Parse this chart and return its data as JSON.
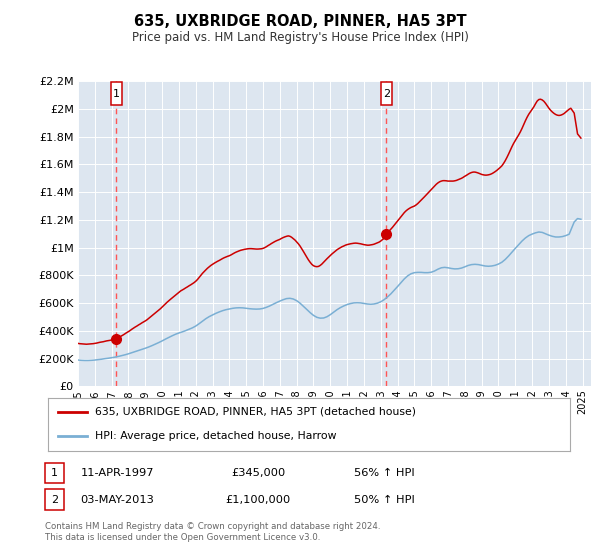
{
  "title": "635, UXBRIDGE ROAD, PINNER, HA5 3PT",
  "subtitle": "Price paid vs. HM Land Registry's House Price Index (HPI)",
  "ylim": [
    0,
    2200000
  ],
  "xlim_start": 1995.0,
  "xlim_end": 2025.5,
  "yticks": [
    0,
    200000,
    400000,
    600000,
    800000,
    1000000,
    1200000,
    1400000,
    1600000,
    1800000,
    2000000,
    2200000
  ],
  "ytick_labels": [
    "£0",
    "£200K",
    "£400K",
    "£600K",
    "£800K",
    "£1M",
    "£1.2M",
    "£1.4M",
    "£1.6M",
    "£1.8M",
    "£2M",
    "£2.2M"
  ],
  "xticks": [
    1995,
    1996,
    1997,
    1998,
    1999,
    2000,
    2001,
    2002,
    2003,
    2004,
    2005,
    2006,
    2007,
    2008,
    2009,
    2010,
    2011,
    2012,
    2013,
    2014,
    2015,
    2016,
    2017,
    2018,
    2019,
    2020,
    2021,
    2022,
    2023,
    2024,
    2025
  ],
  "bg_color": "#dde6f0",
  "grid_color": "#ffffff",
  "red_line_color": "#cc0000",
  "blue_line_color": "#7aafd4",
  "dashed_line_color": "#ff5555",
  "marker1_x": 1997.278,
  "marker1_y": 345000,
  "marker2_x": 2013.336,
  "marker2_y": 1100000,
  "marker_color": "#cc0000",
  "marker_size": 7,
  "legend_label_red": "635, UXBRIDGE ROAD, PINNER, HA5 3PT (detached house)",
  "legend_label_blue": "HPI: Average price, detached house, Harrow",
  "footnote1": "Contains HM Land Registry data © Crown copyright and database right 2024.",
  "footnote2": "This data is licensed under the Open Government Licence v3.0.",
  "table_row1_date": "11-APR-1997",
  "table_row1_price": "£345,000",
  "table_row1_hpi": "56% ↑ HPI",
  "table_row2_date": "03-MAY-2013",
  "table_row2_price": "£1,100,000",
  "table_row2_hpi": "50% ↑ HPI",
  "hpi_red": [
    [
      1995.0,
      310000
    ],
    [
      1995.1,
      308000
    ],
    [
      1995.2,
      307000
    ],
    [
      1995.3,
      306000
    ],
    [
      1995.4,
      305000
    ],
    [
      1995.5,
      304000
    ],
    [
      1995.6,
      305000
    ],
    [
      1995.7,
      306000
    ],
    [
      1995.8,
      307000
    ],
    [
      1995.9,
      308000
    ],
    [
      1996.0,
      310000
    ],
    [
      1996.1,
      312000
    ],
    [
      1996.2,
      315000
    ],
    [
      1996.3,
      318000
    ],
    [
      1996.4,
      320000
    ],
    [
      1996.5,
      322000
    ],
    [
      1996.6,
      325000
    ],
    [
      1996.7,
      328000
    ],
    [
      1996.8,
      330000
    ],
    [
      1996.9,
      332000
    ],
    [
      1997.0,
      335000
    ],
    [
      1997.1,
      338000
    ],
    [
      1997.2,
      340000
    ],
    [
      1997.278,
      345000
    ],
    [
      1997.4,
      352000
    ],
    [
      1997.5,
      358000
    ],
    [
      1997.6,
      365000
    ],
    [
      1997.7,
      372000
    ],
    [
      1997.8,
      380000
    ],
    [
      1997.9,
      388000
    ],
    [
      1998.0,
      395000
    ],
    [
      1998.1,
      403000
    ],
    [
      1998.2,
      412000
    ],
    [
      1998.3,
      420000
    ],
    [
      1998.4,
      428000
    ],
    [
      1998.5,
      435000
    ],
    [
      1998.6,
      443000
    ],
    [
      1998.7,
      450000
    ],
    [
      1998.8,
      458000
    ],
    [
      1998.9,
      465000
    ],
    [
      1999.0,
      472000
    ],
    [
      1999.1,
      480000
    ],
    [
      1999.2,
      490000
    ],
    [
      1999.3,
      500000
    ],
    [
      1999.4,
      510000
    ],
    [
      1999.5,
      520000
    ],
    [
      1999.6,
      530000
    ],
    [
      1999.7,
      540000
    ],
    [
      1999.8,
      550000
    ],
    [
      1999.9,
      560000
    ],
    [
      2000.0,
      572000
    ],
    [
      2000.1,
      583000
    ],
    [
      2000.2,
      595000
    ],
    [
      2000.3,
      607000
    ],
    [
      2000.4,
      618000
    ],
    [
      2000.5,
      628000
    ],
    [
      2000.6,
      638000
    ],
    [
      2000.7,
      648000
    ],
    [
      2000.8,
      658000
    ],
    [
      2000.9,
      668000
    ],
    [
      2001.0,
      678000
    ],
    [
      2001.1,
      688000
    ],
    [
      2001.2,
      695000
    ],
    [
      2001.3,
      702000
    ],
    [
      2001.4,
      710000
    ],
    [
      2001.5,
      717000
    ],
    [
      2001.6,
      725000
    ],
    [
      2001.7,
      732000
    ],
    [
      2001.8,
      740000
    ],
    [
      2001.9,
      748000
    ],
    [
      2002.0,
      758000
    ],
    [
      2002.1,
      770000
    ],
    [
      2002.2,
      785000
    ],
    [
      2002.3,
      800000
    ],
    [
      2002.4,
      815000
    ],
    [
      2002.5,
      828000
    ],
    [
      2002.6,
      840000
    ],
    [
      2002.7,
      852000
    ],
    [
      2002.8,
      862000
    ],
    [
      2002.9,
      872000
    ],
    [
      2003.0,
      880000
    ],
    [
      2003.1,
      888000
    ],
    [
      2003.2,
      895000
    ],
    [
      2003.3,
      902000
    ],
    [
      2003.4,
      908000
    ],
    [
      2003.5,
      915000
    ],
    [
      2003.6,
      922000
    ],
    [
      2003.7,
      928000
    ],
    [
      2003.8,
      933000
    ],
    [
      2003.9,
      938000
    ],
    [
      2004.0,
      942000
    ],
    [
      2004.1,
      948000
    ],
    [
      2004.2,
      955000
    ],
    [
      2004.3,
      962000
    ],
    [
      2004.4,
      968000
    ],
    [
      2004.5,
      973000
    ],
    [
      2004.6,
      978000
    ],
    [
      2004.7,
      982000
    ],
    [
      2004.8,
      985000
    ],
    [
      2004.9,
      988000
    ],
    [
      2005.0,
      990000
    ],
    [
      2005.1,
      992000
    ],
    [
      2005.2,
      993000
    ],
    [
      2005.3,
      993000
    ],
    [
      2005.4,
      992000
    ],
    [
      2005.5,
      991000
    ],
    [
      2005.6,
      990000
    ],
    [
      2005.7,
      990000
    ],
    [
      2005.8,
      991000
    ],
    [
      2005.9,
      992000
    ],
    [
      2006.0,
      995000
    ],
    [
      2006.1,
      1000000
    ],
    [
      2006.2,
      1007000
    ],
    [
      2006.3,
      1015000
    ],
    [
      2006.4,
      1022000
    ],
    [
      2006.5,
      1030000
    ],
    [
      2006.6,
      1037000
    ],
    [
      2006.7,
      1044000
    ],
    [
      2006.8,
      1050000
    ],
    [
      2006.9,
      1055000
    ],
    [
      2007.0,
      1060000
    ],
    [
      2007.1,
      1067000
    ],
    [
      2007.2,
      1073000
    ],
    [
      2007.3,
      1078000
    ],
    [
      2007.4,
      1082000
    ],
    [
      2007.5,
      1085000
    ],
    [
      2007.6,
      1082000
    ],
    [
      2007.7,
      1075000
    ],
    [
      2007.8,
      1065000
    ],
    [
      2007.9,
      1055000
    ],
    [
      2008.0,
      1042000
    ],
    [
      2008.1,
      1028000
    ],
    [
      2008.2,
      1012000
    ],
    [
      2008.3,
      993000
    ],
    [
      2008.4,
      973000
    ],
    [
      2008.5,
      952000
    ],
    [
      2008.6,
      932000
    ],
    [
      2008.7,
      912000
    ],
    [
      2008.8,
      895000
    ],
    [
      2008.9,
      880000
    ],
    [
      2009.0,
      870000
    ],
    [
      2009.1,
      865000
    ],
    [
      2009.2,
      863000
    ],
    [
      2009.3,
      865000
    ],
    [
      2009.4,
      872000
    ],
    [
      2009.5,
      882000
    ],
    [
      2009.6,
      895000
    ],
    [
      2009.7,
      908000
    ],
    [
      2009.8,
      920000
    ],
    [
      2009.9,
      932000
    ],
    [
      2010.0,
      943000
    ],
    [
      2010.1,
      955000
    ],
    [
      2010.2,
      965000
    ],
    [
      2010.3,
      975000
    ],
    [
      2010.4,
      985000
    ],
    [
      2010.5,
      993000
    ],
    [
      2010.6,
      1000000
    ],
    [
      2010.7,
      1007000
    ],
    [
      2010.8,
      1012000
    ],
    [
      2010.9,
      1018000
    ],
    [
      2011.0,
      1022000
    ],
    [
      2011.1,
      1025000
    ],
    [
      2011.2,
      1028000
    ],
    [
      2011.3,
      1030000
    ],
    [
      2011.4,
      1032000
    ],
    [
      2011.5,
      1033000
    ],
    [
      2011.6,
      1032000
    ],
    [
      2011.7,
      1030000
    ],
    [
      2011.8,
      1028000
    ],
    [
      2011.9,
      1025000
    ],
    [
      2012.0,
      1022000
    ],
    [
      2012.1,
      1020000
    ],
    [
      2012.2,
      1018000
    ],
    [
      2012.3,
      1018000
    ],
    [
      2012.4,
      1020000
    ],
    [
      2012.5,
      1022000
    ],
    [
      2012.6,
      1025000
    ],
    [
      2012.7,
      1030000
    ],
    [
      2012.8,
      1035000
    ],
    [
      2012.9,
      1040000
    ],
    [
      2013.0,
      1048000
    ],
    [
      2013.1,
      1058000
    ],
    [
      2013.2,
      1068000
    ],
    [
      2013.336,
      1100000
    ],
    [
      2013.4,
      1110000
    ],
    [
      2013.5,
      1120000
    ],
    [
      2013.6,
      1133000
    ],
    [
      2013.7,
      1147000
    ],
    [
      2013.8,
      1162000
    ],
    [
      2013.9,
      1177000
    ],
    [
      2014.0,
      1192000
    ],
    [
      2014.1,
      1208000
    ],
    [
      2014.2,
      1223000
    ],
    [
      2014.3,
      1238000
    ],
    [
      2014.4,
      1253000
    ],
    [
      2014.5,
      1265000
    ],
    [
      2014.6,
      1275000
    ],
    [
      2014.7,
      1283000
    ],
    [
      2014.8,
      1290000
    ],
    [
      2014.9,
      1295000
    ],
    [
      2015.0,
      1300000
    ],
    [
      2015.1,
      1308000
    ],
    [
      2015.2,
      1318000
    ],
    [
      2015.3,
      1330000
    ],
    [
      2015.4,
      1342000
    ],
    [
      2015.5,
      1355000
    ],
    [
      2015.6,
      1367000
    ],
    [
      2015.7,
      1380000
    ],
    [
      2015.8,
      1393000
    ],
    [
      2015.9,
      1405000
    ],
    [
      2016.0,
      1418000
    ],
    [
      2016.1,
      1432000
    ],
    [
      2016.2,
      1445000
    ],
    [
      2016.3,
      1457000
    ],
    [
      2016.4,
      1467000
    ],
    [
      2016.5,
      1475000
    ],
    [
      2016.6,
      1480000
    ],
    [
      2016.7,
      1483000
    ],
    [
      2016.8,
      1483000
    ],
    [
      2016.9,
      1482000
    ],
    [
      2017.0,
      1480000
    ],
    [
      2017.1,
      1480000
    ],
    [
      2017.2,
      1480000
    ],
    [
      2017.3,
      1480000
    ],
    [
      2017.4,
      1482000
    ],
    [
      2017.5,
      1485000
    ],
    [
      2017.6,
      1490000
    ],
    [
      2017.7,
      1495000
    ],
    [
      2017.8,
      1500000
    ],
    [
      2017.9,
      1507000
    ],
    [
      2018.0,
      1515000
    ],
    [
      2018.1,
      1522000
    ],
    [
      2018.2,
      1530000
    ],
    [
      2018.3,
      1537000
    ],
    [
      2018.4,
      1542000
    ],
    [
      2018.5,
      1545000
    ],
    [
      2018.6,
      1545000
    ],
    [
      2018.7,
      1542000
    ],
    [
      2018.8,
      1538000
    ],
    [
      2018.9,
      1533000
    ],
    [
      2019.0,
      1528000
    ],
    [
      2019.1,
      1525000
    ],
    [
      2019.2,
      1523000
    ],
    [
      2019.3,
      1523000
    ],
    [
      2019.4,
      1525000
    ],
    [
      2019.5,
      1528000
    ],
    [
      2019.6,
      1533000
    ],
    [
      2019.7,
      1540000
    ],
    [
      2019.8,
      1548000
    ],
    [
      2019.9,
      1557000
    ],
    [
      2020.0,
      1567000
    ],
    [
      2020.1,
      1578000
    ],
    [
      2020.2,
      1590000
    ],
    [
      2020.3,
      1607000
    ],
    [
      2020.4,
      1627000
    ],
    [
      2020.5,
      1650000
    ],
    [
      2020.6,
      1675000
    ],
    [
      2020.7,
      1702000
    ],
    [
      2020.8,
      1728000
    ],
    [
      2020.9,
      1752000
    ],
    [
      2021.0,
      1773000
    ],
    [
      2021.1,
      1793000
    ],
    [
      2021.2,
      1813000
    ],
    [
      2021.3,
      1835000
    ],
    [
      2021.4,
      1860000
    ],
    [
      2021.5,
      1888000
    ],
    [
      2021.6,
      1915000
    ],
    [
      2021.7,
      1940000
    ],
    [
      2021.8,
      1962000
    ],
    [
      2021.9,
      1980000
    ],
    [
      2022.0,
      1997000
    ],
    [
      2022.1,
      2015000
    ],
    [
      2022.2,
      2037000
    ],
    [
      2022.3,
      2057000
    ],
    [
      2022.4,
      2068000
    ],
    [
      2022.5,
      2070000
    ],
    [
      2022.6,
      2065000
    ],
    [
      2022.7,
      2055000
    ],
    [
      2022.8,
      2040000
    ],
    [
      2022.9,
      2022000
    ],
    [
      2023.0,
      2005000
    ],
    [
      2023.1,
      1990000
    ],
    [
      2023.2,
      1978000
    ],
    [
      2023.3,
      1968000
    ],
    [
      2023.4,
      1960000
    ],
    [
      2023.5,
      1955000
    ],
    [
      2023.6,
      1953000
    ],
    [
      2023.7,
      1955000
    ],
    [
      2023.8,
      1960000
    ],
    [
      2023.9,
      1967000
    ],
    [
      2024.0,
      1977000
    ],
    [
      2024.1,
      1988000
    ],
    [
      2024.2,
      1998000
    ],
    [
      2024.3,
      2005000
    ],
    [
      2024.5,
      1970000
    ],
    [
      2024.7,
      1820000
    ],
    [
      2024.9,
      1790000
    ]
  ],
  "hpi_blue": [
    [
      1995.0,
      190000
    ],
    [
      1995.2,
      188000
    ],
    [
      1995.4,
      187000
    ],
    [
      1995.6,
      187000
    ],
    [
      1995.8,
      188000
    ],
    [
      1996.0,
      190000
    ],
    [
      1996.2,
      193000
    ],
    [
      1996.4,
      196000
    ],
    [
      1996.6,
      200000
    ],
    [
      1996.8,
      203000
    ],
    [
      1997.0,
      207000
    ],
    [
      1997.2,
      211000
    ],
    [
      1997.4,
      216000
    ],
    [
      1997.6,
      222000
    ],
    [
      1997.8,
      228000
    ],
    [
      1998.0,
      235000
    ],
    [
      1998.2,
      243000
    ],
    [
      1998.4,
      251000
    ],
    [
      1998.6,
      259000
    ],
    [
      1998.8,
      267000
    ],
    [
      1999.0,
      275000
    ],
    [
      1999.2,
      284000
    ],
    [
      1999.4,
      294000
    ],
    [
      1999.6,
      305000
    ],
    [
      1999.8,
      316000
    ],
    [
      2000.0,
      328000
    ],
    [
      2000.2,
      341000
    ],
    [
      2000.4,
      353000
    ],
    [
      2000.6,
      365000
    ],
    [
      2000.8,
      376000
    ],
    [
      2001.0,
      385000
    ],
    [
      2001.2,
      393000
    ],
    [
      2001.4,
      402000
    ],
    [
      2001.6,
      412000
    ],
    [
      2001.8,
      422000
    ],
    [
      2002.0,
      435000
    ],
    [
      2002.2,
      452000
    ],
    [
      2002.4,
      470000
    ],
    [
      2002.6,
      488000
    ],
    [
      2002.8,
      503000
    ],
    [
      2003.0,
      515000
    ],
    [
      2003.2,
      527000
    ],
    [
      2003.4,
      537000
    ],
    [
      2003.6,
      546000
    ],
    [
      2003.8,
      553000
    ],
    [
      2004.0,
      558000
    ],
    [
      2004.2,
      563000
    ],
    [
      2004.4,
      566000
    ],
    [
      2004.6,
      567000
    ],
    [
      2004.8,
      566000
    ],
    [
      2005.0,
      563000
    ],
    [
      2005.2,
      560000
    ],
    [
      2005.4,
      558000
    ],
    [
      2005.6,
      557000
    ],
    [
      2005.8,
      558000
    ],
    [
      2006.0,
      562000
    ],
    [
      2006.2,
      570000
    ],
    [
      2006.4,
      580000
    ],
    [
      2006.6,
      592000
    ],
    [
      2006.8,
      604000
    ],
    [
      2007.0,
      615000
    ],
    [
      2007.2,
      625000
    ],
    [
      2007.4,
      633000
    ],
    [
      2007.6,
      635000
    ],
    [
      2007.8,
      630000
    ],
    [
      2008.0,
      618000
    ],
    [
      2008.2,
      600000
    ],
    [
      2008.4,
      578000
    ],
    [
      2008.6,
      555000
    ],
    [
      2008.8,
      532000
    ],
    [
      2009.0,
      512000
    ],
    [
      2009.2,
      498000
    ],
    [
      2009.4,
      492000
    ],
    [
      2009.6,
      493000
    ],
    [
      2009.8,
      502000
    ],
    [
      2010.0,
      517000
    ],
    [
      2010.2,
      535000
    ],
    [
      2010.4,
      553000
    ],
    [
      2010.6,
      568000
    ],
    [
      2010.8,
      580000
    ],
    [
      2011.0,
      590000
    ],
    [
      2011.2,
      597000
    ],
    [
      2011.4,
      602000
    ],
    [
      2011.6,
      603000
    ],
    [
      2011.8,
      602000
    ],
    [
      2012.0,
      598000
    ],
    [
      2012.2,
      594000
    ],
    [
      2012.4,
      592000
    ],
    [
      2012.6,
      594000
    ],
    [
      2012.8,
      600000
    ],
    [
      2013.0,
      610000
    ],
    [
      2013.2,
      625000
    ],
    [
      2013.4,
      645000
    ],
    [
      2013.6,
      667000
    ],
    [
      2013.8,
      693000
    ],
    [
      2014.0,
      720000
    ],
    [
      2014.2,
      748000
    ],
    [
      2014.4,
      775000
    ],
    [
      2014.6,
      797000
    ],
    [
      2014.8,
      812000
    ],
    [
      2015.0,
      820000
    ],
    [
      2015.2,
      822000
    ],
    [
      2015.4,
      822000
    ],
    [
      2015.6,
      820000
    ],
    [
      2015.8,
      820000
    ],
    [
      2016.0,
      823000
    ],
    [
      2016.2,
      832000
    ],
    [
      2016.4,
      845000
    ],
    [
      2016.6,
      855000
    ],
    [
      2016.8,
      858000
    ],
    [
      2017.0,
      855000
    ],
    [
      2017.2,
      850000
    ],
    [
      2017.4,
      847000
    ],
    [
      2017.6,
      848000
    ],
    [
      2017.8,
      853000
    ],
    [
      2018.0,
      862000
    ],
    [
      2018.2,
      872000
    ],
    [
      2018.4,
      878000
    ],
    [
      2018.6,
      880000
    ],
    [
      2018.8,
      878000
    ],
    [
      2019.0,
      873000
    ],
    [
      2019.2,
      868000
    ],
    [
      2019.4,
      866000
    ],
    [
      2019.6,
      868000
    ],
    [
      2019.8,
      873000
    ],
    [
      2020.0,
      882000
    ],
    [
      2020.2,
      895000
    ],
    [
      2020.4,
      915000
    ],
    [
      2020.6,
      940000
    ],
    [
      2020.8,
      968000
    ],
    [
      2021.0,
      995000
    ],
    [
      2021.2,
      1022000
    ],
    [
      2021.4,
      1048000
    ],
    [
      2021.6,
      1070000
    ],
    [
      2021.8,
      1087000
    ],
    [
      2022.0,
      1098000
    ],
    [
      2022.2,
      1107000
    ],
    [
      2022.4,
      1113000
    ],
    [
      2022.6,
      1110000
    ],
    [
      2022.8,
      1100000
    ],
    [
      2023.0,
      1090000
    ],
    [
      2023.2,
      1082000
    ],
    [
      2023.4,
      1077000
    ],
    [
      2023.6,
      1077000
    ],
    [
      2023.8,
      1080000
    ],
    [
      2024.0,
      1087000
    ],
    [
      2024.2,
      1097000
    ],
    [
      2024.5,
      1185000
    ],
    [
      2024.7,
      1210000
    ],
    [
      2024.9,
      1205000
    ]
  ]
}
